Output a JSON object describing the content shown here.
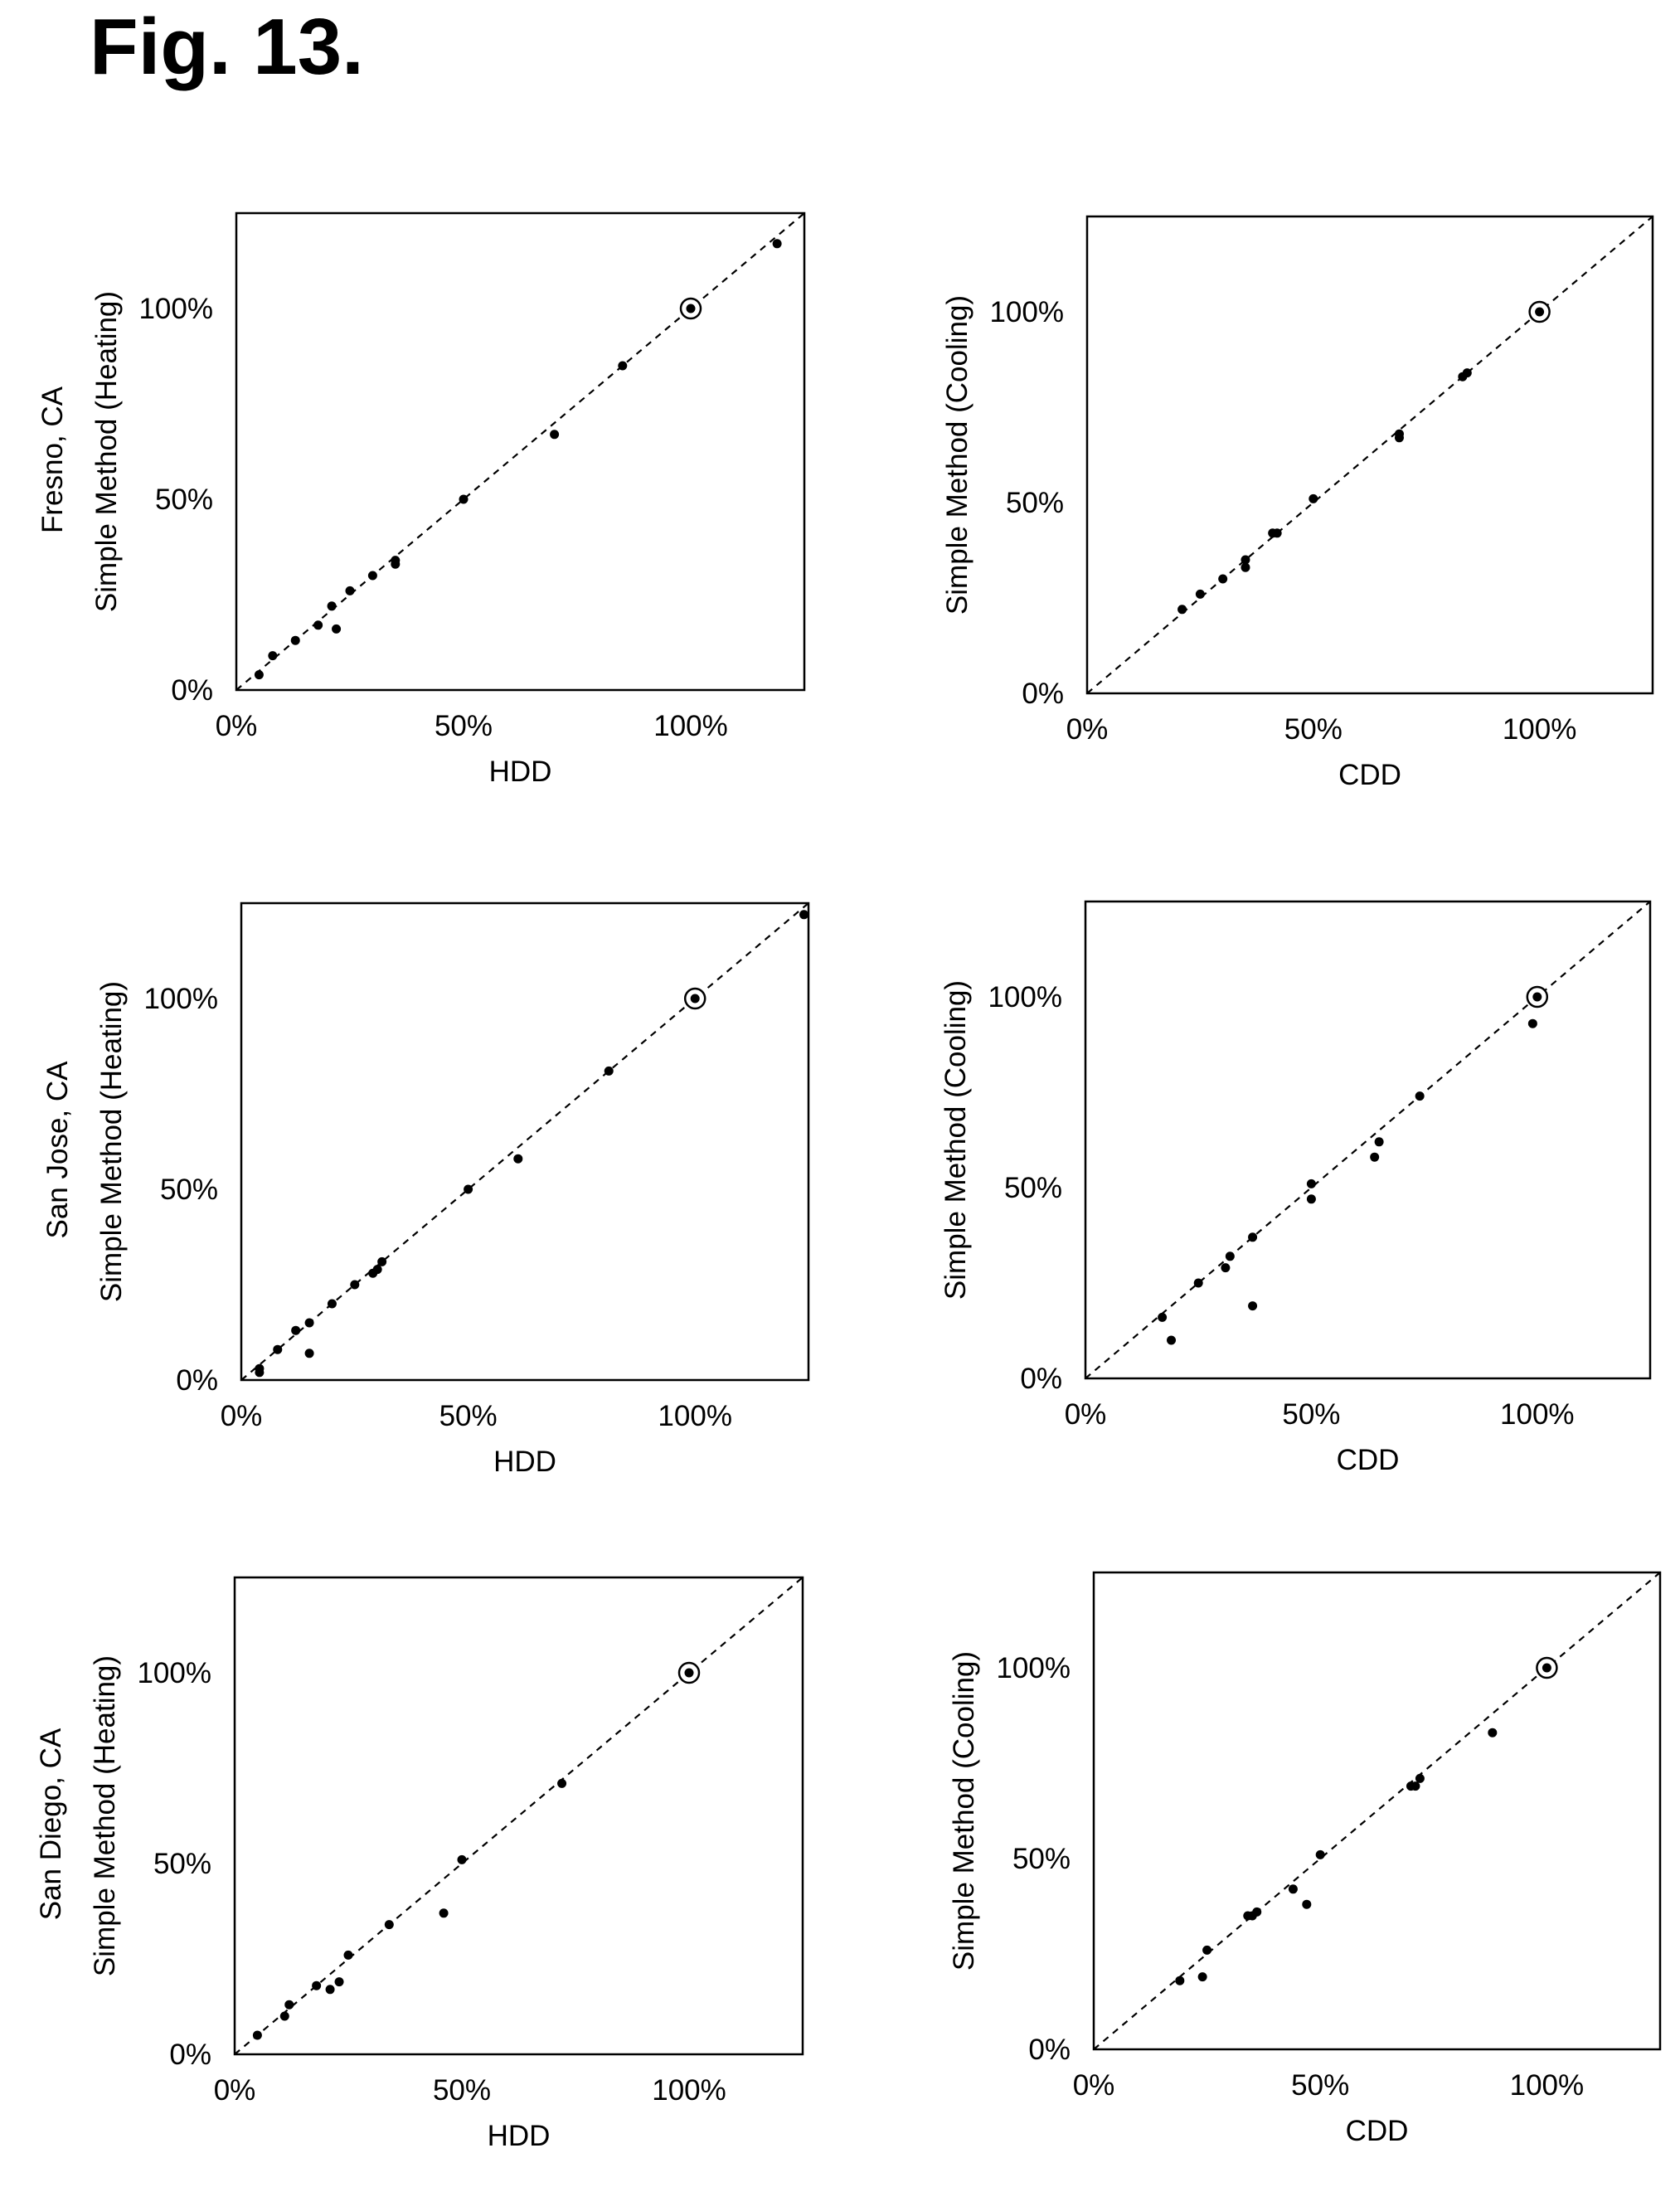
{
  "figure_title": "Fig. 13.",
  "chart_data": [
    {
      "id": "fresno-heating",
      "type": "scatter",
      "row_label": "Fresno, CA",
      "xlabel": "HDD",
      "ylabel": "Simple Method (Heating)",
      "xlim": [
        0,
        125
      ],
      "ylim": [
        0,
        125
      ],
      "x_ticks": [
        "0%",
        "50%",
        "100%"
      ],
      "y_ticks": [
        "0%",
        "50%",
        "100%"
      ],
      "reference_line": "y = x (dashed)",
      "reference_point": {
        "x": 100,
        "y": 100
      },
      "points": [
        [
          5,
          4
        ],
        [
          8,
          9
        ],
        [
          13,
          13
        ],
        [
          18,
          17
        ],
        [
          21,
          22
        ],
        [
          22,
          16
        ],
        [
          25,
          26
        ],
        [
          30,
          30
        ],
        [
          35,
          33
        ],
        [
          35,
          34
        ],
        [
          50,
          50
        ],
        [
          70,
          67
        ],
        [
          85,
          85
        ],
        [
          119,
          117
        ]
      ]
    },
    {
      "id": "fresno-cooling",
      "type": "scatter",
      "row_label": "",
      "xlabel": "CDD",
      "ylabel": "Simple Method (Cooling)",
      "xlim": [
        0,
        125
      ],
      "ylim": [
        0,
        125
      ],
      "x_ticks": [
        "0%",
        "50%",
        "100%"
      ],
      "y_ticks": [
        "0%",
        "50%",
        "100%"
      ],
      "reference_line": "y = x (dashed)",
      "reference_point": {
        "x": 100,
        "y": 100
      },
      "points": [
        [
          21,
          22
        ],
        [
          25,
          26
        ],
        [
          30,
          30
        ],
        [
          35,
          33
        ],
        [
          35,
          35
        ],
        [
          41,
          42
        ],
        [
          42,
          42
        ],
        [
          50,
          51
        ],
        [
          69,
          67
        ],
        [
          69,
          68
        ],
        [
          83,
          83
        ],
        [
          84,
          84
        ]
      ]
    },
    {
      "id": "sanjose-heating",
      "type": "scatter",
      "row_label": "San Jose, CA",
      "xlabel": "HDD",
      "ylabel": "Simple Method (Heating)",
      "xlim": [
        0,
        125
      ],
      "ylim": [
        0,
        125
      ],
      "x_ticks": [
        "0%",
        "50%",
        "100%"
      ],
      "y_ticks": [
        "0%",
        "50%",
        "100%"
      ],
      "reference_line": "y = x (dashed)",
      "reference_point": {
        "x": 100,
        "y": 100
      },
      "points": [
        [
          4,
          2
        ],
        [
          4,
          3
        ],
        [
          8,
          8
        ],
        [
          12,
          13
        ],
        [
          15,
          15
        ],
        [
          15,
          7
        ],
        [
          20,
          20
        ],
        [
          25,
          25
        ],
        [
          29,
          28
        ],
        [
          30,
          29
        ],
        [
          31,
          31
        ],
        [
          50,
          50
        ],
        [
          61,
          58
        ],
        [
          81,
          81
        ],
        [
          124,
          122
        ]
      ]
    },
    {
      "id": "sanjose-cooling",
      "type": "scatter",
      "row_label": "",
      "xlabel": "CDD",
      "ylabel": "Simple Method (Cooling)",
      "xlim": [
        0,
        125
      ],
      "ylim": [
        0,
        125
      ],
      "x_ticks": [
        "0%",
        "50%",
        "100%"
      ],
      "y_ticks": [
        "0%",
        "50%",
        "100%"
      ],
      "reference_line": "y = x (dashed)",
      "reference_point": {
        "x": 100,
        "y": 100
      },
      "points": [
        [
          17,
          16
        ],
        [
          19,
          10
        ],
        [
          25,
          25
        ],
        [
          31,
          29
        ],
        [
          32,
          32
        ],
        [
          37,
          37
        ],
        [
          37,
          19
        ],
        [
          50,
          47
        ],
        [
          50,
          51
        ],
        [
          64,
          58
        ],
        [
          65,
          62
        ],
        [
          74,
          74
        ],
        [
          99,
          93
        ]
      ]
    },
    {
      "id": "sandiego-heating",
      "type": "scatter",
      "row_label": "San Diego, CA",
      "xlabel": "HDD",
      "ylabel": "Simple Method (Heating)",
      "xlim": [
        0,
        125
      ],
      "ylim": [
        0,
        125
      ],
      "x_ticks": [
        "0%",
        "50%",
        "100%"
      ],
      "y_ticks": [
        "0%",
        "50%",
        "100%"
      ],
      "reference_line": "y = x (dashed)",
      "reference_point": {
        "x": 100,
        "y": 100
      },
      "points": [
        [
          5,
          5
        ],
        [
          11,
          10
        ],
        [
          12,
          13
        ],
        [
          18,
          18
        ],
        [
          21,
          17
        ],
        [
          23,
          19
        ],
        [
          25,
          26
        ],
        [
          34,
          34
        ],
        [
          46,
          37
        ],
        [
          50,
          51
        ],
        [
          72,
          71
        ]
      ]
    },
    {
      "id": "sandiego-cooling",
      "type": "scatter",
      "row_label": "",
      "xlabel": "CDD",
      "ylabel": "Simple Method (Cooling)",
      "xlim": [
        0,
        125
      ],
      "ylim": [
        0,
        125
      ],
      "x_ticks": [
        "0%",
        "50%",
        "100%"
      ],
      "y_ticks": [
        "0%",
        "50%",
        "100%"
      ],
      "reference_line": "y = x (dashed)",
      "reference_point": {
        "x": 100,
        "y": 100
      },
      "points": [
        [
          19,
          18
        ],
        [
          24,
          19
        ],
        [
          25,
          26
        ],
        [
          34,
          35
        ],
        [
          35,
          35
        ],
        [
          36,
          36
        ],
        [
          44,
          42
        ],
        [
          47,
          38
        ],
        [
          50,
          51
        ],
        [
          70,
          69
        ],
        [
          71,
          69
        ],
        [
          72,
          71
        ],
        [
          88,
          83
        ]
      ]
    }
  ]
}
